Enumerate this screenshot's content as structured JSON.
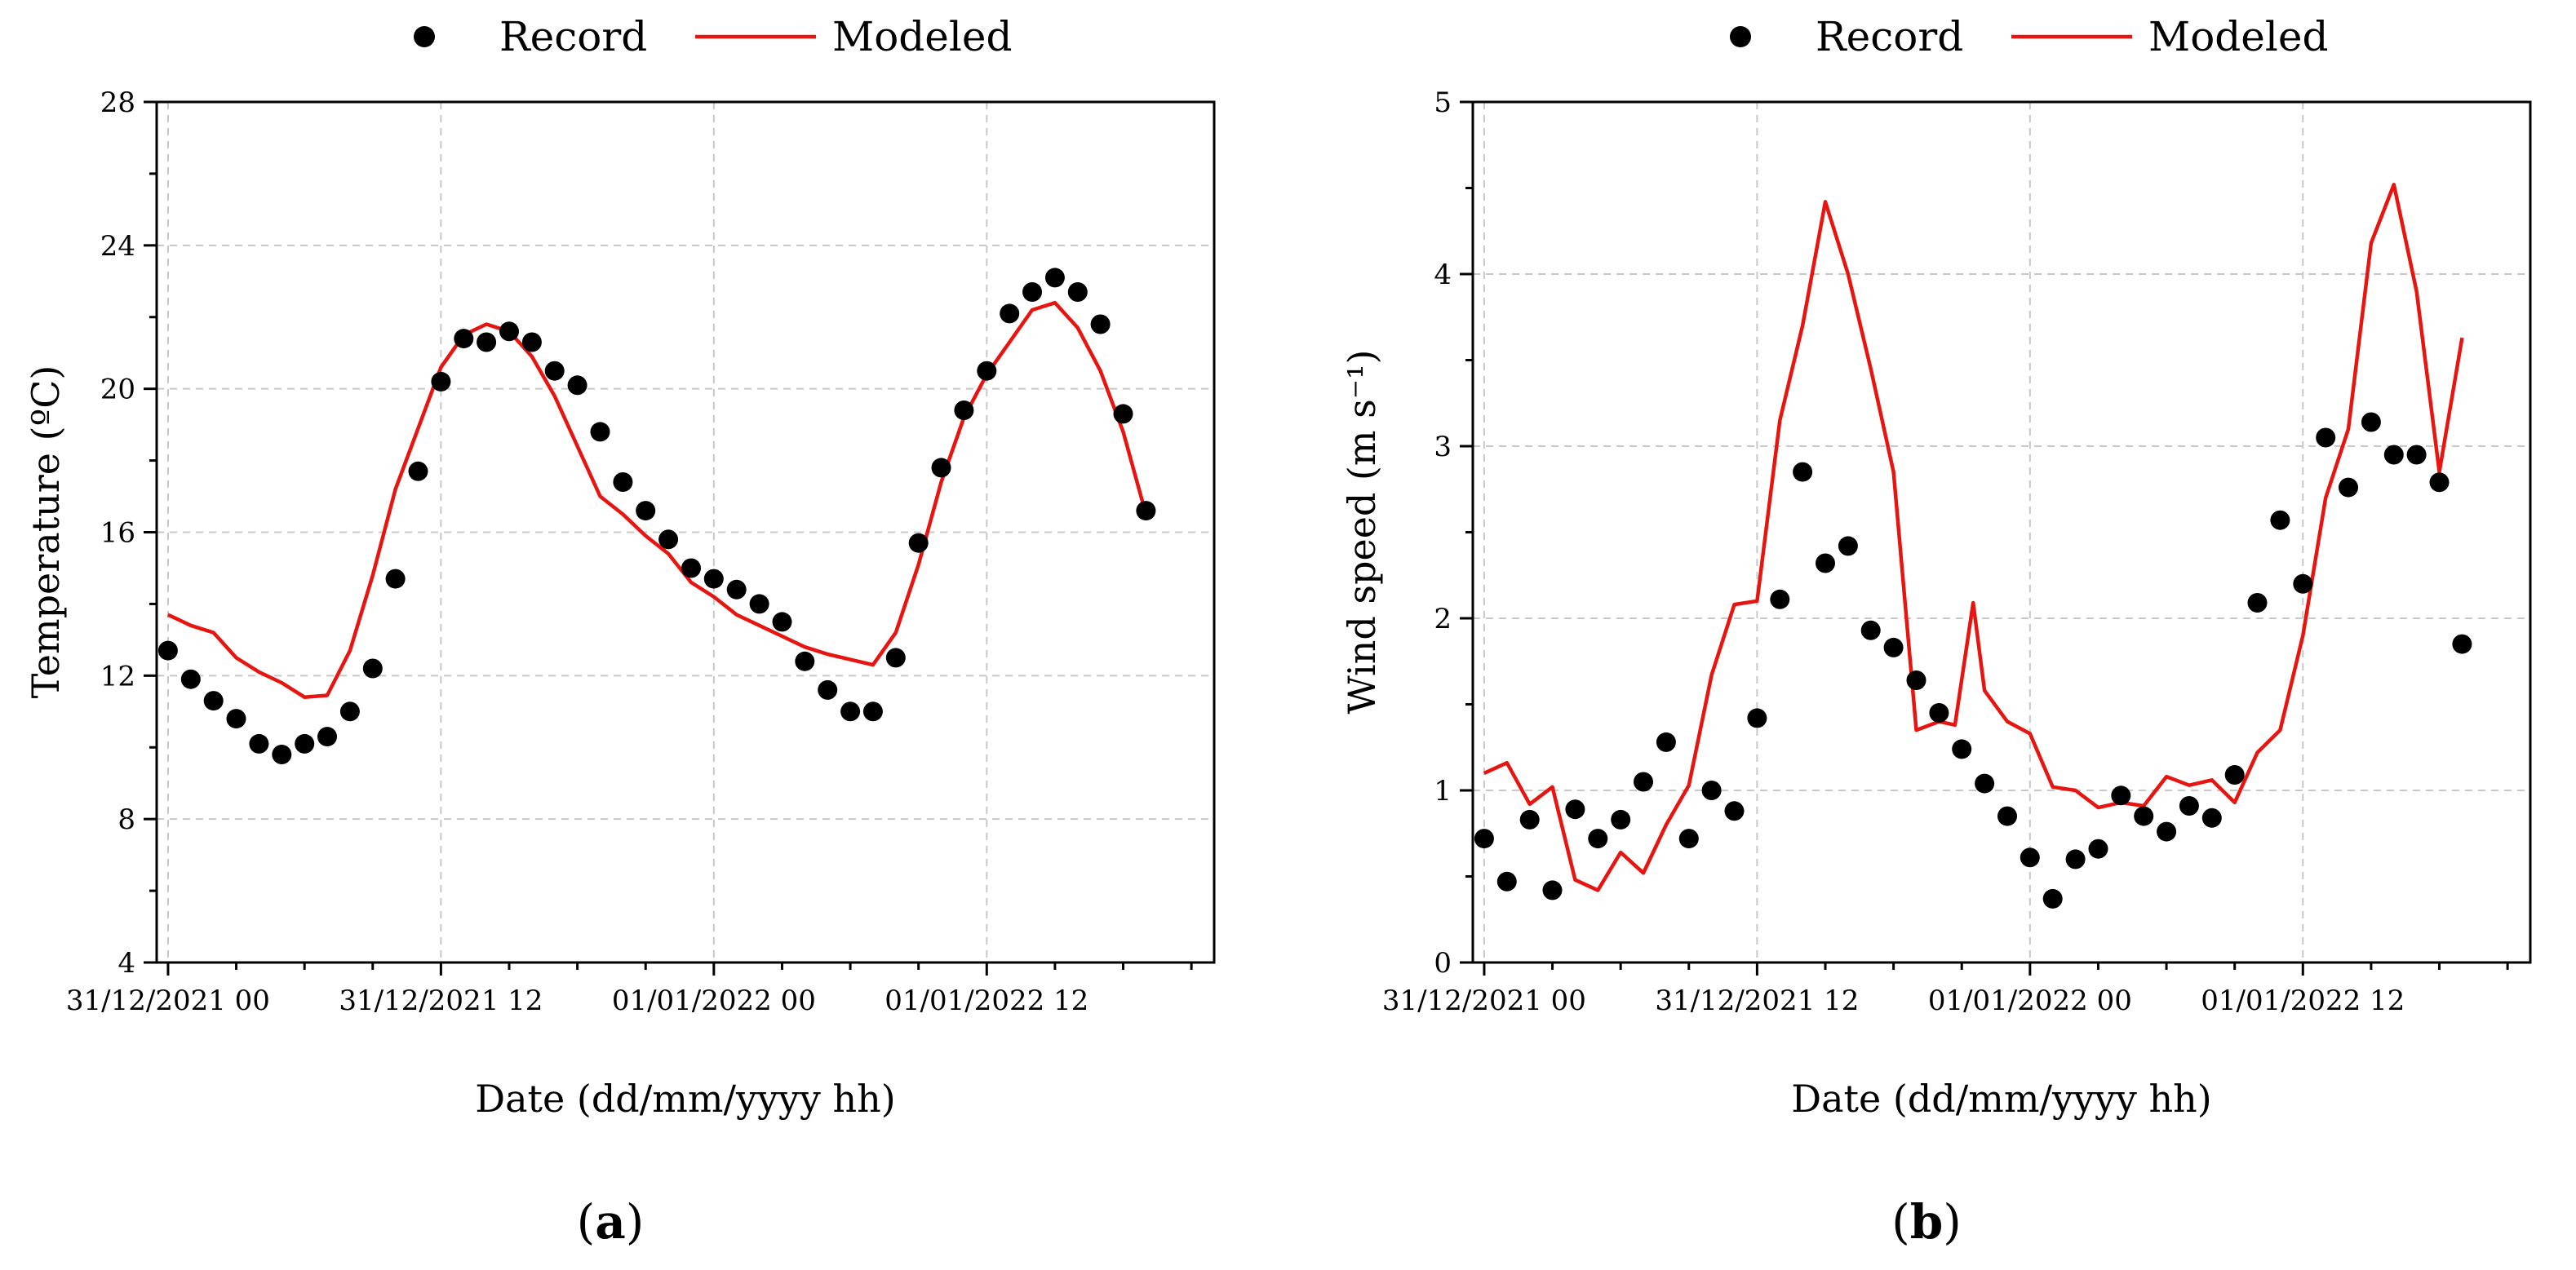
{
  "panels": [
    {
      "label_prefix": "(",
      "label_letter": "a",
      "label_suffix": ")",
      "legend": {
        "record": "Record",
        "modeled": "Modeled"
      },
      "xlabel": "Date (dd/mm/yyyy hh)",
      "ylabel": "Temperature (ºC)"
    },
    {
      "label_prefix": "(",
      "label_letter": "b",
      "label_suffix": ")",
      "legend": {
        "record": "Record",
        "modeled": "Modeled"
      },
      "xlabel": "Date (dd/mm/yyyy hh)",
      "ylabel": "Wind speed (m s⁻¹)"
    }
  ],
  "chart_data": [
    {
      "type": "line",
      "title": "",
      "xlabel": "Date (dd/mm/yyyy hh)",
      "ylabel": "Temperature (ºC)",
      "x_unit": "hours since 31/12/2021 00",
      "xlim": [
        -0.5,
        46
      ],
      "ylim": [
        4,
        28
      ],
      "xticks": [
        0,
        12,
        24,
        36
      ],
      "xtick_labels": [
        "31/12/2021 00",
        "31/12/2021 12",
        "01/01/2022 00",
        "01/01/2022 12"
      ],
      "yticks": [
        4,
        8,
        12,
        16,
        20,
        24,
        28
      ],
      "ytick_labels": [
        "4",
        "8",
        "12",
        "16",
        "20",
        "24",
        "28"
      ],
      "grid": true,
      "legend_position": "top-center",
      "series": [
        {
          "name": "Record",
          "style": "scatter",
          "color": "#000000",
          "x": [
            0,
            1,
            2,
            3,
            4,
            5,
            6,
            7,
            8,
            9,
            10,
            11,
            12,
            13,
            14,
            15,
            16,
            17,
            18,
            19,
            20,
            21,
            22,
            23,
            24,
            25,
            26,
            27,
            28,
            29,
            30,
            31,
            32,
            33,
            34,
            35,
            36,
            37,
            38,
            39,
            40,
            41,
            42,
            43
          ],
          "values": [
            12.7,
            11.9,
            11.3,
            10.8,
            10.1,
            9.8,
            10.1,
            10.3,
            11.0,
            12.2,
            14.7,
            17.7,
            20.2,
            21.4,
            21.3,
            21.6,
            21.3,
            20.5,
            20.1,
            18.8,
            17.4,
            16.6,
            15.8,
            15.0,
            14.7,
            14.4,
            14.0,
            13.5,
            12.4,
            11.6,
            11.0,
            11.0,
            12.5,
            15.7,
            17.8,
            19.4,
            20.5,
            22.1,
            22.7,
            23.1,
            22.7,
            21.8,
            19.3,
            16.6
          ]
        },
        {
          "name": "Modeled",
          "style": "line",
          "color": "#e8140f",
          "x": [
            0,
            1,
            2,
            3,
            4,
            5,
            6,
            7,
            8,
            9,
            10,
            11,
            12,
            13,
            14,
            15,
            16,
            17,
            18,
            19,
            20,
            21,
            22,
            23,
            24,
            25,
            26,
            27,
            28,
            29,
            30,
            31,
            32,
            33,
            34,
            35,
            36,
            37,
            38,
            39,
            40,
            41,
            42,
            43
          ],
          "values": [
            13.7,
            13.4,
            13.2,
            12.5,
            12.1,
            11.8,
            11.4,
            11.45,
            12.7,
            14.8,
            17.2,
            18.9,
            20.6,
            21.5,
            21.8,
            21.6,
            20.9,
            19.8,
            18.4,
            17.0,
            16.5,
            15.9,
            15.4,
            14.6,
            14.2,
            13.7,
            13.4,
            13.1,
            12.8,
            12.6,
            12.45,
            12.3,
            13.2,
            15.1,
            17.4,
            19.2,
            20.4,
            21.3,
            22.2,
            22.4,
            21.7,
            20.5,
            18.8,
            16.5
          ]
        }
      ]
    },
    {
      "type": "line",
      "title": "",
      "xlabel": "Date (dd/mm/yyyy hh)",
      "ylabel": "Wind speed (m s⁻¹)",
      "x_unit": "hours since 31/12/2021 00",
      "xlim": [
        -0.5,
        46
      ],
      "ylim": [
        0,
        5
      ],
      "xticks": [
        0,
        12,
        24,
        36
      ],
      "xtick_labels": [
        "31/12/2021 00",
        "31/12/2021 12",
        "01/01/2022 00",
        "01/01/2022 12"
      ],
      "yticks": [
        0,
        1,
        2,
        3,
        4,
        5
      ],
      "ytick_labels": [
        "0",
        "1",
        "2",
        "3",
        "4",
        "5"
      ],
      "grid": true,
      "legend_position": "top-center",
      "series": [
        {
          "name": "Record",
          "style": "scatter",
          "color": "#000000",
          "x": [
            0,
            1,
            2,
            3,
            4,
            5,
            6,
            7,
            8,
            9,
            10,
            11,
            12,
            13,
            14,
            15,
            16,
            17,
            18,
            19,
            20,
            21,
            22,
            23,
            24,
            25,
            26,
            27,
            28,
            29,
            30,
            31,
            32,
            33,
            34,
            35,
            36,
            37,
            38,
            39,
            40,
            41,
            42,
            43
          ],
          "values": [
            0.72,
            0.47,
            0.83,
            0.42,
            0.89,
            0.72,
            0.83,
            1.05,
            1.28,
            0.72,
            1.0,
            0.88,
            1.42,
            2.11,
            2.85,
            2.32,
            2.42,
            1.93,
            1.83,
            1.64,
            1.45,
            1.24,
            1.04,
            0.85,
            0.61,
            0.37,
            0.6,
            0.66,
            0.97,
            0.85,
            0.76,
            0.91,
            0.84,
            1.09,
            2.09,
            2.57,
            2.2,
            3.05,
            2.76,
            3.14,
            2.95,
            2.95,
            2.79,
            1.85
          ]
        },
        {
          "name": "Modeled",
          "style": "line",
          "color": "#e8140f",
          "x": [
            0,
            1,
            2,
            3,
            4,
            5,
            6,
            7,
            8,
            9,
            10,
            11,
            12,
            13,
            14,
            15,
            16,
            17,
            18,
            19,
            20,
            20.7,
            21.5,
            22,
            23,
            24,
            25,
            26,
            27,
            28,
            29,
            30,
            31,
            32,
            33,
            34,
            35,
            36,
            37,
            38,
            39,
            40,
            41,
            42,
            43
          ],
          "values": [
            1.1,
            1.16,
            0.92,
            1.02,
            0.48,
            0.42,
            0.64,
            0.52,
            0.8,
            1.03,
            1.67,
            2.08,
            2.1,
            3.15,
            3.7,
            4.42,
            4.0,
            3.45,
            2.85,
            1.35,
            1.4,
            1.38,
            2.09,
            1.58,
            1.4,
            1.33,
            1.02,
            1.0,
            0.9,
            0.93,
            0.91,
            1.08,
            1.03,
            1.06,
            0.93,
            1.22,
            1.35,
            1.9,
            2.7,
            3.1,
            4.18,
            4.52,
            3.9,
            2.85,
            3.63
          ]
        }
      ]
    }
  ]
}
